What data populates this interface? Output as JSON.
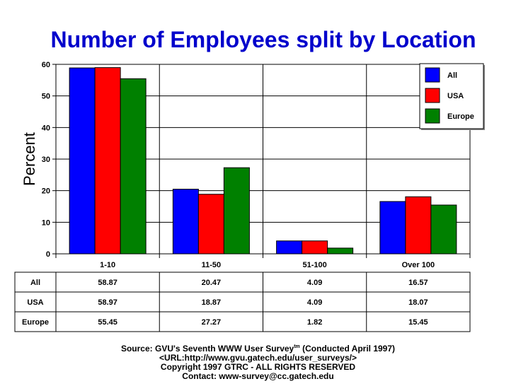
{
  "chart_data": {
    "type": "bar",
    "title": "Number of Employees split by Location",
    "ylabel": "Percent",
    "xlabel": "",
    "ylim": [
      0,
      60
    ],
    "yticks": [
      0,
      10,
      20,
      30,
      40,
      50,
      60
    ],
    "grid": true,
    "legend_position": "top-right",
    "categories": [
      "1-10",
      "11-50",
      "51-100",
      "Over 100"
    ],
    "series": [
      {
        "name": "All",
        "color": "#0000ff",
        "values": [
          58.87,
          20.47,
          4.09,
          16.57
        ],
        "labels": [
          "58.87",
          "20.47",
          "4.09",
          "16.57"
        ]
      },
      {
        "name": "USA",
        "color": "#ff0000",
        "values": [
          58.97,
          18.87,
          4.09,
          18.07
        ],
        "labels": [
          "58.97",
          "18.87",
          "4.09",
          "18.07"
        ]
      },
      {
        "name": "Europe",
        "color": "#008000",
        "values": [
          55.45,
          27.27,
          1.82,
          15.45
        ],
        "labels": [
          "55.45",
          "27.27",
          "1.82",
          "15.45"
        ]
      }
    ]
  },
  "colors": {
    "title": "#0000cc"
  },
  "footer": {
    "source_prefix": "Source: GVU's Seventh WWW User Survey",
    "source_sup": "tm",
    "source_suffix": " (Conducted April 1997)",
    "url": "<URL:http://www.gvu.gatech.edu/user_surveys/>",
    "copyright": "Copyright 1997 GTRC - ALL RIGHTS RESERVED",
    "contact": "Contact: www-survey@cc.gatech.edu"
  }
}
